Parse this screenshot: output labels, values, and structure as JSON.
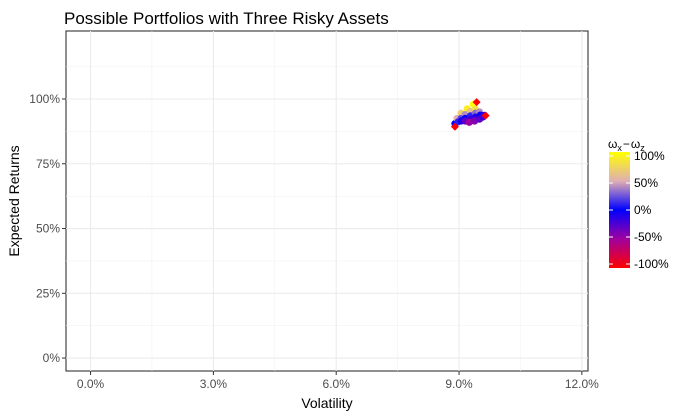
{
  "chart_data": {
    "type": "scatter",
    "title": "Possible Portfolios with Three Risky Assets",
    "xlabel": "Volatility",
    "ylabel": "Expected Returns",
    "xlim": [
      -0.006,
      0.1215
    ],
    "ylim": [
      -0.05,
      1.2625
    ],
    "xticks": [
      0.0,
      0.03,
      0.06,
      0.09,
      0.12
    ],
    "xtick_labels": [
      "0.0%",
      "3.0%",
      "6.0%",
      "9.0%",
      "12.0%"
    ],
    "yticks": [
      0.0,
      0.25,
      0.5,
      0.75,
      1.0
    ],
    "ytick_labels": [
      "0%",
      "25%",
      "50%",
      "75%",
      "100%"
    ],
    "grid": true,
    "legend": {
      "position": "right",
      "title_main": "ω",
      "title_sub1": "x",
      "title_sep": "−",
      "title_sub2": "z",
      "labels": [
        "100%",
        "50%",
        "0%",
        "-50%",
        "-100%"
      ],
      "gradient_colors": [
        "#ffff00",
        "#e0aeb3",
        "#0000ff",
        "#a000a0",
        "#ff0000"
      ]
    },
    "portfolio_cloud": [
      {
        "x": 0.089,
        "y": 0.905,
        "w": 0.0
      },
      {
        "x": 0.0895,
        "y": 0.925,
        "w": 0.5
      },
      {
        "x": 0.0905,
        "y": 0.945,
        "w": 0.7
      },
      {
        "x": 0.092,
        "y": 0.962,
        "w": 0.9
      },
      {
        "x": 0.0935,
        "y": 0.98,
        "w": 1.0
      },
      {
        "x": 0.0898,
        "y": 0.912,
        "w": 0.1
      },
      {
        "x": 0.0905,
        "y": 0.925,
        "w": 0.2
      },
      {
        "x": 0.0915,
        "y": 0.94,
        "w": 0.4
      },
      {
        "x": 0.0928,
        "y": 0.952,
        "w": 0.6
      },
      {
        "x": 0.094,
        "y": 0.96,
        "w": 0.8
      },
      {
        "x": 0.0905,
        "y": 0.915,
        "w": -0.1
      },
      {
        "x": 0.0915,
        "y": 0.925,
        "w": 0.0
      },
      {
        "x": 0.0928,
        "y": 0.935,
        "w": 0.1
      },
      {
        "x": 0.094,
        "y": 0.945,
        "w": 0.3
      },
      {
        "x": 0.095,
        "y": 0.95,
        "w": 0.4
      },
      {
        "x": 0.0915,
        "y": 0.915,
        "w": -0.3
      },
      {
        "x": 0.0928,
        "y": 0.922,
        "w": -0.2
      },
      {
        "x": 0.094,
        "y": 0.93,
        "w": -0.1
      },
      {
        "x": 0.0952,
        "y": 0.938,
        "w": 0.0
      },
      {
        "x": 0.0962,
        "y": 0.937,
        "w": -0.1
      },
      {
        "x": 0.0925,
        "y": 0.91,
        "w": -0.5
      },
      {
        "x": 0.0938,
        "y": 0.915,
        "w": -0.4
      },
      {
        "x": 0.095,
        "y": 0.922,
        "w": -0.3
      },
      {
        "x": 0.0958,
        "y": 0.93,
        "w": -0.2
      }
    ],
    "asset_points": [
      {
        "x": 0.089,
        "y": 0.893
      },
      {
        "x": 0.0943,
        "y": 0.988
      },
      {
        "x": 0.0965,
        "y": 0.936
      }
    ]
  }
}
